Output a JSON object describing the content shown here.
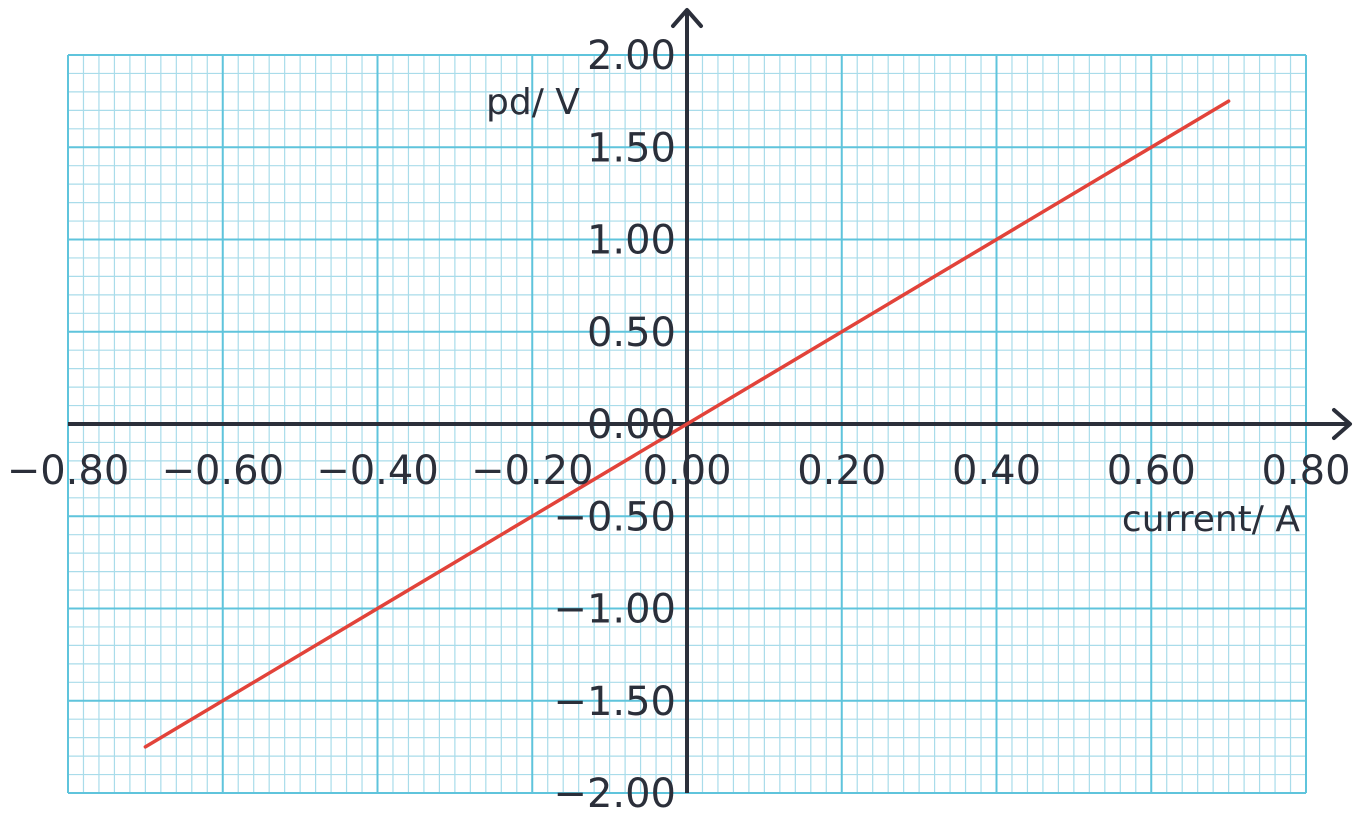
{
  "chart_data": {
    "type": "line",
    "title": "",
    "xlabel": "current/ A",
    "ylabel": "pd/ V",
    "xlim": [
      -0.8,
      0.8
    ],
    "ylim": [
      -2.0,
      2.0
    ],
    "grid": true,
    "x_ticks": [
      "−0.80",
      "−0.60",
      "−0.40",
      "−0.20",
      "0.00",
      "0.20",
      "0.40",
      "0.60",
      "0.80"
    ],
    "x_tick_values": [
      -0.8,
      -0.6,
      -0.4,
      -0.2,
      0.0,
      0.2,
      0.4,
      0.6,
      0.8
    ],
    "y_ticks": [
      "2.00",
      "1.50",
      "1.00",
      "0.50",
      "0.00",
      "−0.50",
      "−1.00",
      "−1.50",
      "−2.00"
    ],
    "y_tick_values": [
      2.0,
      1.5,
      1.0,
      0.5,
      0.0,
      -0.5,
      -1.0,
      -1.5,
      -2.0
    ],
    "series": [
      {
        "x": [
          -0.7,
          0.7
        ],
        "y": [
          -1.75,
          1.75
        ]
      }
    ],
    "colors": {
      "minor_grid": "#a9dcea",
      "major_grid": "#5fc4dc",
      "axis": "#2b2f3a",
      "line": "#e2433a"
    }
  }
}
